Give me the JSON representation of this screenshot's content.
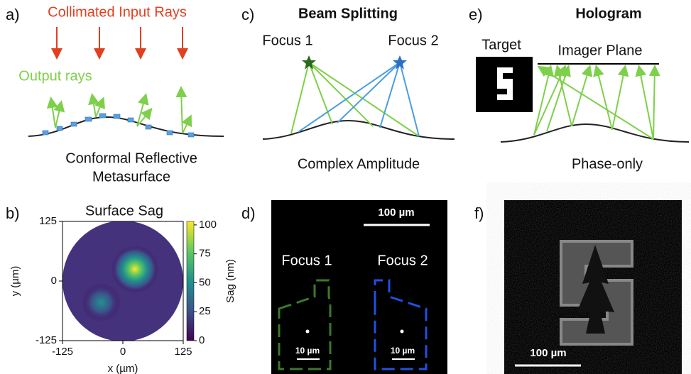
{
  "panels": {
    "a": {
      "label": "a)",
      "input": "Collimated Input Rays",
      "output": "Output rays",
      "caption": [
        "Conformal Reflective",
        "Metasurface"
      ]
    },
    "c": {
      "label": "c)",
      "title": "Beam Splitting",
      "focus1": "Focus 1",
      "focus2": "Focus 2",
      "caption": "Complex Amplitude"
    },
    "e": {
      "label": "e)",
      "title": "Hologram",
      "target": "Target",
      "plane": "Imager Plane",
      "caption": "Phase-only"
    },
    "b": {
      "label": "b)",
      "type": "heatmap",
      "title": "Surface Sag",
      "xlabel": "x (µm)",
      "ylabel": "y (µm)",
      "clabel": "Sag (nm)",
      "xlim": [
        -125,
        125
      ],
      "ylim": [
        -125,
        125
      ],
      "xticks": [
        -125,
        0,
        125
      ],
      "yticks": [
        -125,
        0,
        125
      ],
      "clim": [
        0,
        103
      ],
      "cticks": [
        0,
        25,
        50,
        75,
        100
      ],
      "peaks": [
        {
          "x": 25,
          "y": 25,
          "z": 100
        },
        {
          "x": -45,
          "y": -45,
          "z": 60
        }
      ]
    },
    "d": {
      "label": "d)",
      "scale": "100 µm",
      "focus1": "Focus 1",
      "focus2": "Focus 2",
      "inset1": "10 µm",
      "inset2": "10 µm"
    },
    "f": {
      "label": "f)",
      "scale": "100 µm"
    }
  }
}
